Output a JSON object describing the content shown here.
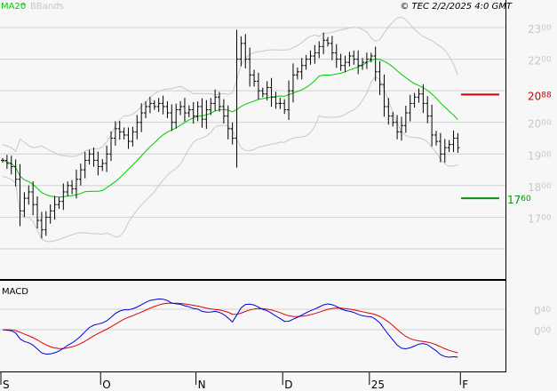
{
  "header": {
    "legend_ma": "MA20",
    "legend_bb": "BBands",
    "copyright": "© TEC 2/2/2025 4:0 GMT"
  },
  "macd_label": "MACD",
  "colors": {
    "ma": "#00cc00",
    "bb": "#c8c8c8",
    "price": "#000000",
    "macd": "#0000dd",
    "signal": "#dd0000",
    "resistance": "#cc0000",
    "support": "#009900"
  },
  "chart_data": {
    "type": "line",
    "title": "",
    "xlabel": "",
    "ylabel": "",
    "ylim": [
      1600,
      2350
    ],
    "y_ticks": [
      {
        "value": 2300,
        "major": "23",
        "minor": "00"
      },
      {
        "value": 2200,
        "major": "22",
        "minor": "00"
      },
      {
        "value": 2000,
        "major": "20",
        "minor": "00"
      },
      {
        "value": 1900,
        "major": "19",
        "minor": "00"
      },
      {
        "value": 1800,
        "major": "18",
        "minor": "00"
      },
      {
        "value": 1700,
        "major": "17",
        "minor": "00"
      }
    ],
    "grid_values": [
      2300,
      2200,
      2100,
      2000,
      1900,
      1800,
      1700,
      1600
    ],
    "x_labels": [
      {
        "index": 0,
        "label": "S"
      },
      {
        "index": 23,
        "label": "O"
      },
      {
        "index": 45,
        "label": "N"
      },
      {
        "index": 65,
        "label": "D"
      },
      {
        "index": 85,
        "label": "25"
      },
      {
        "index": 106,
        "label": "F"
      }
    ],
    "resistance": {
      "value": 2088,
      "major": "20",
      "minor": "88"
    },
    "support": {
      "value": 1760,
      "major": "17",
      "minor": "60"
    },
    "closes": [
      1880,
      1870,
      1860,
      1820,
      1720,
      1760,
      1780,
      1740,
      1690,
      1660,
      1700,
      1720,
      1740,
      1750,
      1780,
      1800,
      1790,
      1820,
      1850,
      1880,
      1900,
      1880,
      1860,
      1870,
      1900,
      1950,
      1980,
      1970,
      1960,
      1940,
      1970,
      2000,
      2030,
      2050,
      2060,
      2050,
      2060,
      2050,
      2030,
      2000,
      2040,
      2050,
      2030,
      2040,
      2020,
      2050,
      2010,
      2040,
      2060,
      2080,
      2050,
      2020,
      1980,
      1950,
      2200,
      2250,
      2200,
      2150,
      2130,
      2100,
      2090,
      2110,
      2080,
      2060,
      2060,
      2040,
      2100,
      2150,
      2160,
      2180,
      2200,
      2210,
      2220,
      2240,
      2260,
      2250,
      2220,
      2200,
      2180,
      2190,
      2210,
      2200,
      2180,
      2190,
      2200,
      2210,
      2160,
      2120,
      2050,
      2020,
      2000,
      1970,
      1990,
      2030,
      2060,
      2080,
      2090,
      2060,
      2020,
      1960,
      1940,
      1900,
      1920,
      1930,
      1950,
      1920
    ],
    "series": [
      {
        "name": "Price",
        "kind": "hloc"
      },
      {
        "name": "MA20",
        "kind": "line"
      },
      {
        "name": "BBands",
        "kind": "band"
      }
    ],
    "macd": {
      "y_ticks": [
        {
          "value": 40,
          "major": "0",
          "minor": "40"
        },
        {
          "value": 0,
          "major": "0",
          "minor": "00"
        }
      ],
      "series": [
        {
          "name": "MACD"
        },
        {
          "name": "Signal"
        }
      ]
    }
  }
}
